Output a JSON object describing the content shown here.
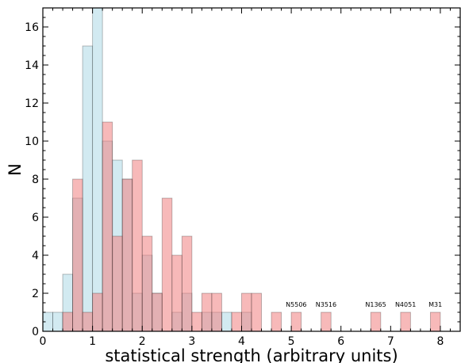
{
  "chart_data": {
    "type": "histogram",
    "xlabel": "statistical strength  (arbitrary units)",
    "ylabel": "N",
    "xlim": [
      0,
      8.4
    ],
    "ylim": [
      0,
      17
    ],
    "grid": false,
    "bin_width": 0.2,
    "xticks": [
      0,
      1,
      2,
      3,
      4,
      5,
      6,
      7,
      8
    ],
    "yticks": [
      0,
      2,
      4,
      6,
      8,
      10,
      12,
      14,
      16
    ],
    "series": [
      {
        "color": "#add8e6",
        "bins": [
          {
            "x0": 0.0,
            "count": 1
          },
          {
            "x0": 0.2,
            "count": 1
          },
          {
            "x0": 0.4,
            "count": 3
          },
          {
            "x0": 0.6,
            "count": 7
          },
          {
            "x0": 0.8,
            "count": 15
          },
          {
            "x0": 1.0,
            "count": 17
          },
          {
            "x0": 1.2,
            "count": 10
          },
          {
            "x0": 1.4,
            "count": 9
          },
          {
            "x0": 1.6,
            "count": 8
          },
          {
            "x0": 1.8,
            "count": 2
          },
          {
            "x0": 2.0,
            "count": 4
          },
          {
            "x0": 2.2,
            "count": 2
          },
          {
            "x0": 2.4,
            "count": 0
          },
          {
            "x0": 2.6,
            "count": 1
          },
          {
            "x0": 2.8,
            "count": 2
          },
          {
            "x0": 3.0,
            "count": 0
          },
          {
            "x0": 3.2,
            "count": 1
          },
          {
            "x0": 3.4,
            "count": 1
          },
          {
            "x0": 3.6,
            "count": 1
          },
          {
            "x0": 3.8,
            "count": 0
          },
          {
            "x0": 4.0,
            "count": 1
          }
        ]
      },
      {
        "color": "#f08080",
        "bins": [
          {
            "x0": 0.4,
            "count": 1
          },
          {
            "x0": 0.6,
            "count": 8
          },
          {
            "x0": 0.8,
            "count": 1
          },
          {
            "x0": 1.0,
            "count": 2
          },
          {
            "x0": 1.2,
            "count": 11
          },
          {
            "x0": 1.4,
            "count": 5
          },
          {
            "x0": 1.6,
            "count": 8
          },
          {
            "x0": 1.8,
            "count": 9
          },
          {
            "x0": 2.0,
            "count": 5
          },
          {
            "x0": 2.2,
            "count": 2
          },
          {
            "x0": 2.4,
            "count": 7
          },
          {
            "x0": 2.6,
            "count": 4
          },
          {
            "x0": 2.8,
            "count": 5
          },
          {
            "x0": 3.0,
            "count": 1
          },
          {
            "x0": 3.2,
            "count": 2
          },
          {
            "x0": 3.4,
            "count": 2
          },
          {
            "x0": 3.8,
            "count": 1
          },
          {
            "x0": 4.0,
            "count": 2
          },
          {
            "x0": 4.2,
            "count": 2
          },
          {
            "x0": 4.6,
            "count": 1
          },
          {
            "x0": 5.0,
            "count": 1
          },
          {
            "x0": 5.6,
            "count": 1
          },
          {
            "x0": 6.6,
            "count": 1
          },
          {
            "x0": 7.2,
            "count": 1
          },
          {
            "x0": 7.8,
            "count": 1
          }
        ]
      }
    ],
    "annotations": [
      {
        "text": "N5506",
        "x": 5.1,
        "y": 1.3
      },
      {
        "text": "N3516",
        "x": 5.7,
        "y": 1.3
      },
      {
        "text": "N1365",
        "x": 6.7,
        "y": 1.3
      },
      {
        "text": "N4051",
        "x": 7.3,
        "y": 1.3
      },
      {
        "text": "M31",
        "x": 7.9,
        "y": 1.3
      }
    ]
  }
}
